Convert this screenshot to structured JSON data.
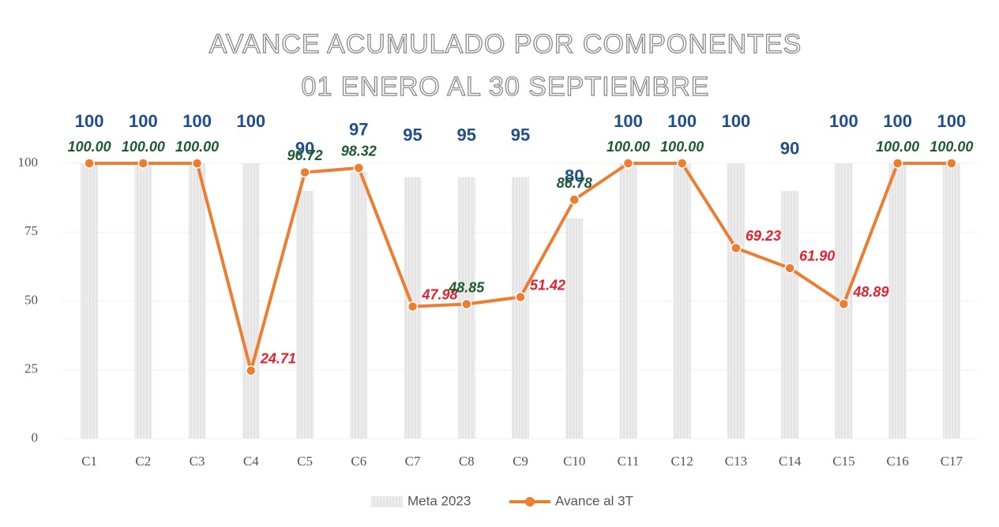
{
  "chart_data": {
    "type": "bar_line",
    "title": "AVANCE ACUMULADO POR COMPONENTES",
    "subtitle": "01 ENERO AL 30 SEPTIEMBRE",
    "categories": [
      "C1",
      "C2",
      "C3",
      "C4",
      "C5",
      "C6",
      "C7",
      "C8",
      "C9",
      "C10",
      "C11",
      "C12",
      "C13",
      "C14",
      "C15",
      "C16",
      "C17"
    ],
    "series": [
      {
        "name": "Meta 2023",
        "type": "bar",
        "color": "#e6e6e6",
        "label_color": "#1f4e8c",
        "values": [
          100,
          100,
          100,
          100,
          90,
          97,
          95,
          95,
          95,
          80,
          100,
          100,
          100,
          90,
          100,
          100,
          100
        ]
      },
      {
        "name": "Avance al 3T",
        "type": "line",
        "color": "#ed7d31",
        "values": [
          100,
          100,
          100,
          24.71,
          96.72,
          98.32,
          47.98,
          48.85,
          51.42,
          86.78,
          100,
          100,
          69.23,
          61.9,
          48.89,
          100,
          100
        ],
        "value_labels": [
          "100.00",
          "100.00",
          "100.00",
          "24.71",
          "96.72",
          "98.32",
          "47.98",
          "48.85",
          "51.42",
          "86.78",
          "100.00",
          "100.00",
          "69.23",
          "61.90",
          "48.89",
          "100.00",
          "100.00"
        ],
        "value_label_colors": [
          "#1e5a32",
          "#1e5a32",
          "#1e5a32",
          "#e8202e",
          "#1e5a32",
          "#1e5a32",
          "#e8202e",
          "#1e5a32",
          "#e8202e",
          "#1e5a32",
          "#1e5a32",
          "#1e5a32",
          "#e8202e",
          "#e8202e",
          "#e8202e",
          "#1e5a32",
          "#1e5a32"
        ]
      }
    ],
    "ylim": [
      0,
      100
    ],
    "yticks": [
      0,
      25,
      50,
      75,
      100
    ],
    "grid": true,
    "legend": "bottom"
  }
}
